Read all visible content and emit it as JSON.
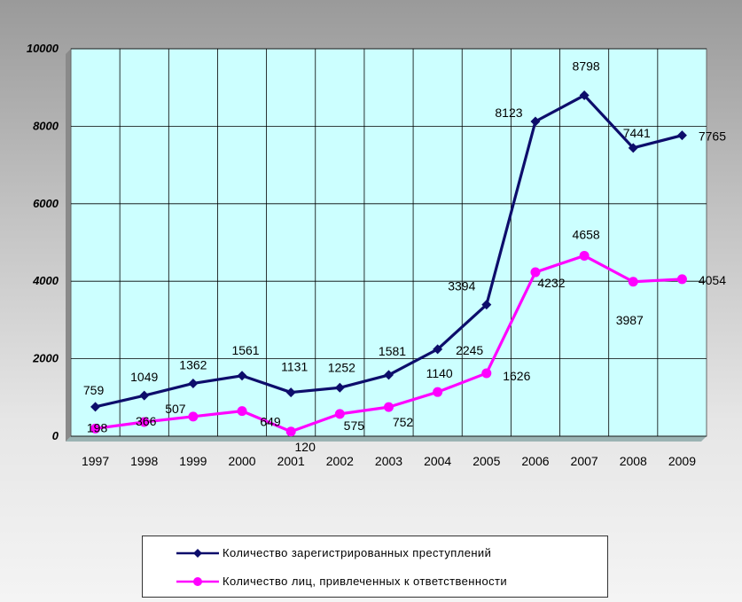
{
  "chart_data": {
    "type": "line",
    "categories": [
      "1997",
      "1998",
      "1999",
      "2000",
      "2001",
      "2002",
      "2003",
      "2004",
      "2005",
      "2006",
      "2007",
      "2008",
      "2009"
    ],
    "series": [
      {
        "name": "Количество зарегистрированных  преступлений",
        "color": "#0d0d6b",
        "marker": "diamond",
        "values": [
          759,
          1049,
          1362,
          1561,
          1131,
          1252,
          1581,
          2245,
          3394,
          8123,
          8798,
          7441,
          7765
        ]
      },
      {
        "name": "Количество лиц, привлеченных  к ответственности",
        "color": "#ff00ff",
        "marker": "circle",
        "values": [
          198,
          366,
          507,
          649,
          120,
          575,
          752,
          1140,
          1626,
          4232,
          4658,
          3987,
          4054
        ]
      }
    ],
    "ylim": [
      0,
      10000
    ],
    "yticks": [
      "0",
      "2000",
      "4000",
      "6000",
      "8000",
      "10000"
    ],
    "grid": true,
    "legend_position": "bottom",
    "plot_background": "#ccffff"
  }
}
